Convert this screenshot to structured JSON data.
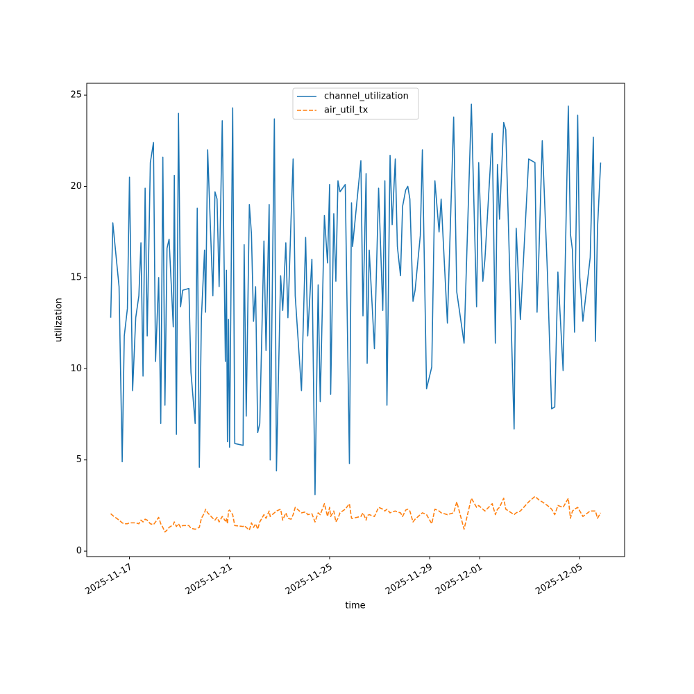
{
  "chart_data": {
    "type": "line",
    "xlabel": "time",
    "ylabel": "utilization",
    "x": [
      "2025-11-16T06:00",
      "2025-11-16T08:00",
      "2025-11-16T14:00",
      "2025-11-16T17:00",
      "2025-11-16T19:00",
      "2025-11-16T22:00",
      "2025-11-17T00:00",
      "2025-11-17T03:00",
      "2025-11-17T06:00",
      "2025-11-17T09:00",
      "2025-11-17T11:00",
      "2025-11-17T13:00",
      "2025-11-17T15:00",
      "2025-11-17T17:00",
      "2025-11-17T20:00",
      "2025-11-17T23:00",
      "2025-11-18T01:00",
      "2025-11-18T04:00",
      "2025-11-18T06:00",
      "2025-11-18T08:00",
      "2025-11-18T10:00",
      "2025-11-18T12:00",
      "2025-11-18T14:00",
      "2025-11-18T18:00",
      "2025-11-18T19:00",
      "2025-11-18T21:00",
      "2025-11-18T23:00",
      "2025-11-19T01:00",
      "2025-11-19T03:00",
      "2025-11-19T09:00",
      "2025-11-19T11:00",
      "2025-11-19T15:00",
      "2025-11-19T17:00",
      "2025-11-19T19:00",
      "2025-11-19T21:00",
      "2025-11-20T00:00",
      "2025-11-20T01:00",
      "2025-11-20T03:00",
      "2025-11-20T08:00",
      "2025-11-20T10:00",
      "2025-11-20T12:00",
      "2025-11-20T14:00",
      "2025-11-20T17:00",
      "2025-11-20T20:00",
      "2025-11-20T21:00",
      "2025-11-20T22:00",
      "2025-11-20T23:00",
      "2025-11-21T00:00",
      "2025-11-21T03:00",
      "2025-11-21T05:00",
      "2025-11-21T13:00",
      "2025-11-21T14:00",
      "2025-11-21T16:00",
      "2025-11-21T19:00",
      "2025-11-21T21:00",
      "2025-11-21T23:00",
      "2025-11-22T01:00",
      "2025-11-22T03:00",
      "2025-11-22T05:00",
      "2025-11-22T09:00",
      "2025-11-22T11:00",
      "2025-11-22T14:00",
      "2025-11-22T15:00",
      "2025-11-22T19:00",
      "2025-11-22T21:00",
      "2025-11-23T01:00",
      "2025-11-23T03:00",
      "2025-11-23T06:00",
      "2025-11-23T08:00",
      "2025-11-23T11:00",
      "2025-11-23T13:00",
      "2025-11-23T15:00",
      "2025-11-23T21:00",
      "2025-11-24T01:00",
      "2025-11-24T03:00",
      "2025-11-24T07:00",
      "2025-11-24T10:00",
      "2025-11-24T13:00",
      "2025-11-24T15:00",
      "2025-11-24T19:00",
      "2025-11-24T22:00",
      "2025-11-25T00:00",
      "2025-11-25T01:00",
      "2025-11-25T04:00",
      "2025-11-25T06:00",
      "2025-11-25T08:00",
      "2025-11-25T10:00",
      "2025-11-25T15:00",
      "2025-11-25T19:00",
      "2025-11-25T21:00",
      "2025-11-25T22:00",
      "2025-11-26T06:00",
      "2025-11-26T08:00",
      "2025-11-26T11:00",
      "2025-11-26T12:00",
      "2025-11-26T14:00",
      "2025-11-26T19:00",
      "2025-11-26T23:00",
      "2025-11-27T03:00",
      "2025-11-27T05:00",
      "2025-11-27T07:00",
      "2025-11-27T10:00",
      "2025-11-27T12:00",
      "2025-11-27T15:00",
      "2025-11-27T17:00",
      "2025-11-27T20:00",
      "2025-11-27T22:00",
      "2025-11-28T01:00",
      "2025-11-28T03:00",
      "2025-11-28T05:00",
      "2025-11-28T08:00",
      "2025-11-28T10:00",
      "2025-11-28T15:00",
      "2025-11-28T17:00",
      "2025-11-28T21:00",
      "2025-11-29T02:00",
      "2025-11-29T05:00",
      "2025-11-29T09:00",
      "2025-11-29T11:00",
      "2025-11-29T17:00",
      "2025-11-29T23:00",
      "2025-11-30T02:00",
      "2025-11-30T09:00",
      "2025-11-30T16:00",
      "2025-11-30T21:00",
      "2025-11-30T23:00",
      "2025-12-01T03:00",
      "2025-12-01T05:00",
      "2025-12-01T12:00",
      "2025-12-01T15:00",
      "2025-12-01T17:00",
      "2025-12-01T19:00",
      "2025-12-01T23:00",
      "2025-12-02T01:00",
      "2025-12-02T09:00",
      "2025-12-02T11:00",
      "2025-12-02T15:00",
      "2025-12-02T23:00",
      "2025-12-03T05:00",
      "2025-12-03T07:00",
      "2025-12-03T09:00",
      "2025-12-03T12:00",
      "2025-12-03T17:00",
      "2025-12-03T21:00",
      "2025-12-04T00:00",
      "2025-12-04T03:00",
      "2025-12-04T08:00",
      "2025-12-04T13:00",
      "2025-12-04T15:00",
      "2025-12-04T17:00",
      "2025-12-04T19:00",
      "2025-12-04T22:00",
      "2025-12-05T00:00",
      "2025-12-05T03:00",
      "2025-12-05T10:00",
      "2025-12-05T13:00",
      "2025-12-05T15:00",
      "2025-12-05T17:00",
      "2025-12-05T20:00"
    ],
    "series": [
      {
        "name": "channel_utilization",
        "color": "#1f77b4",
        "dash": "solid",
        "values": [
          12.8,
          18.0,
          14.5,
          4.9,
          11.8,
          13.3,
          20.5,
          8.8,
          12.8,
          14.0,
          16.9,
          9.6,
          19.9,
          11.8,
          21.3,
          22.4,
          10.4,
          15.0,
          7.0,
          21.6,
          8.0,
          16.6,
          17.1,
          12.3,
          20.6,
          6.4,
          24.0,
          13.4,
          14.3,
          14.4,
          9.8,
          7.0,
          18.8,
          4.6,
          12.8,
          16.5,
          13.1,
          22.0,
          14.0,
          19.7,
          19.3,
          14.5,
          23.6,
          10.4,
          15.4,
          6.0,
          12.7,
          5.7,
          24.3,
          5.9,
          5.8,
          16.8,
          7.4,
          19.0,
          17.4,
          12.6,
          14.5,
          6.5,
          7.0,
          17.0,
          11.0,
          19.0,
          5.0,
          23.7,
          4.4,
          15.1,
          13.2,
          16.9,
          12.8,
          18.2,
          21.5,
          14.0,
          8.8,
          17.2,
          11.8,
          16.0,
          3.1,
          14.6,
          8.2,
          18.4,
          15.8,
          20.1,
          8.6,
          18.5,
          14.8,
          20.3,
          19.7,
          20.1,
          4.8,
          19.1,
          16.7,
          21.4,
          12.9,
          20.7,
          10.3,
          16.5,
          11.1,
          19.9,
          13.2,
          20.3,
          8.0,
          21.7,
          17.9,
          21.5,
          16.7,
          15.1,
          18.9,
          19.8,
          20.0,
          19.3,
          13.7,
          14.3,
          17.3,
          22.0,
          8.9,
          10.1,
          20.3,
          17.5,
          19.3,
          12.5,
          23.8,
          14.2,
          11.4,
          24.5,
          13.4,
          21.3,
          14.8,
          16.0,
          22.9,
          11.4,
          21.2,
          18.2,
          23.5,
          23.1,
          6.7,
          17.7,
          12.7,
          21.5,
          21.3,
          13.1,
          16.7,
          22.5,
          15.2,
          7.8,
          7.9,
          15.3,
          9.9,
          24.4,
          17.4,
          16.5,
          12.0,
          23.9,
          15.0,
          12.6,
          16.1,
          22.7,
          11.5,
          17.7,
          21.3
        ]
      },
      {
        "name": "air_util_tx",
        "color": "#ff7f0e",
        "dash": "dashed",
        "values": [
          2.05,
          1.95,
          1.7,
          1.55,
          1.5,
          1.5,
          1.55,
          1.55,
          1.55,
          1.5,
          1.7,
          1.6,
          1.75,
          1.7,
          1.5,
          1.45,
          1.6,
          1.85,
          1.5,
          1.3,
          1.05,
          1.15,
          1.3,
          1.45,
          1.6,
          1.35,
          1.5,
          1.3,
          1.4,
          1.4,
          1.25,
          1.2,
          1.25,
          1.3,
          1.8,
          2.1,
          2.3,
          2.1,
          1.8,
          1.7,
          1.85,
          1.6,
          1.9,
          1.65,
          1.8,
          1.5,
          2.2,
          2.25,
          2.0,
          1.4,
          1.35,
          1.4,
          1.3,
          1.15,
          1.55,
          1.3,
          1.5,
          1.2,
          1.6,
          2.0,
          1.8,
          2.2,
          1.9,
          2.1,
          2.2,
          2.3,
          1.7,
          2.1,
          1.8,
          1.75,
          2.0,
          2.4,
          2.1,
          2.15,
          2.0,
          2.05,
          1.6,
          2.1,
          2.0,
          2.6,
          1.9,
          2.4,
          1.9,
          2.2,
          1.6,
          1.8,
          2.1,
          2.3,
          2.6,
          1.8,
          1.8,
          1.9,
          2.1,
          1.7,
          1.95,
          2.0,
          1.9,
          2.4,
          2.3,
          2.2,
          2.3,
          2.1,
          2.15,
          2.2,
          2.15,
          2.1,
          1.9,
          2.25,
          2.3,
          2.2,
          1.6,
          1.75,
          2.0,
          2.1,
          2.0,
          1.5,
          2.3,
          2.2,
          2.1,
          2.0,
          2.1,
          2.7,
          1.2,
          2.9,
          2.4,
          2.5,
          2.3,
          2.2,
          2.6,
          2.0,
          2.3,
          2.4,
          2.9,
          2.3,
          2.0,
          2.1,
          2.2,
          2.7,
          3.0,
          2.9,
          2.8,
          2.7,
          2.5,
          2.3,
          2.0,
          2.5,
          2.4,
          2.9,
          1.8,
          2.2,
          2.3,
          2.4,
          2.2,
          1.9,
          2.2,
          2.2,
          2.2,
          1.8,
          2.1
        ]
      }
    ],
    "xlim": [
      "2025-11-15T07:00",
      "2025-12-06T19:00"
    ],
    "xticks": [
      "2025-11-17",
      "2025-11-21",
      "2025-11-25",
      "2025-11-29",
      "2025-12-01",
      "2025-12-05"
    ],
    "ylim": [
      -0.3,
      25.65
    ],
    "yticks": [
      0,
      5,
      10,
      15,
      20,
      25
    ],
    "legend": "upper center"
  }
}
